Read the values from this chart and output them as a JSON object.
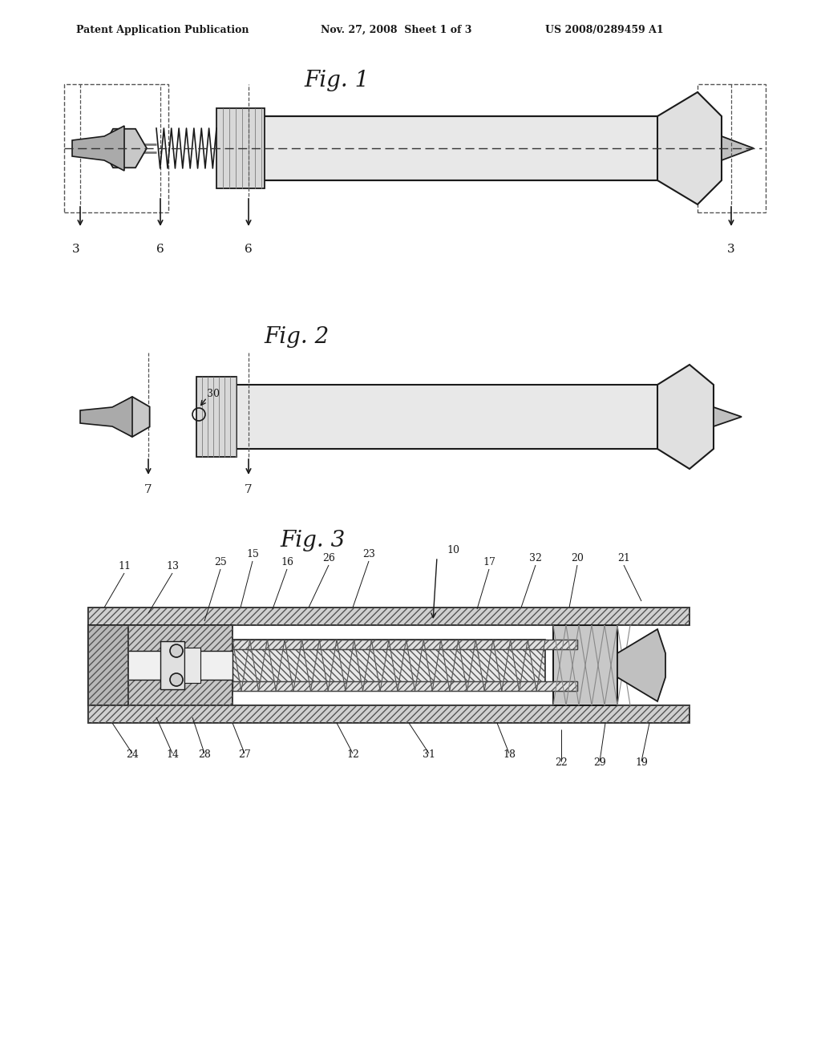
{
  "bg_color": "#ffffff",
  "text_color": "#000000",
  "header_left": "Patent Application Publication",
  "header_mid": "Nov. 27, 2008  Sheet 1 of 3",
  "header_right": "US 2008/0289459 A1",
  "fig1_title": "Fig. 1",
  "fig2_title": "Fig. 2",
  "fig3_title": "Fig. 3",
  "line_color": "#1a1a1a",
  "hatch_color": "#333333"
}
